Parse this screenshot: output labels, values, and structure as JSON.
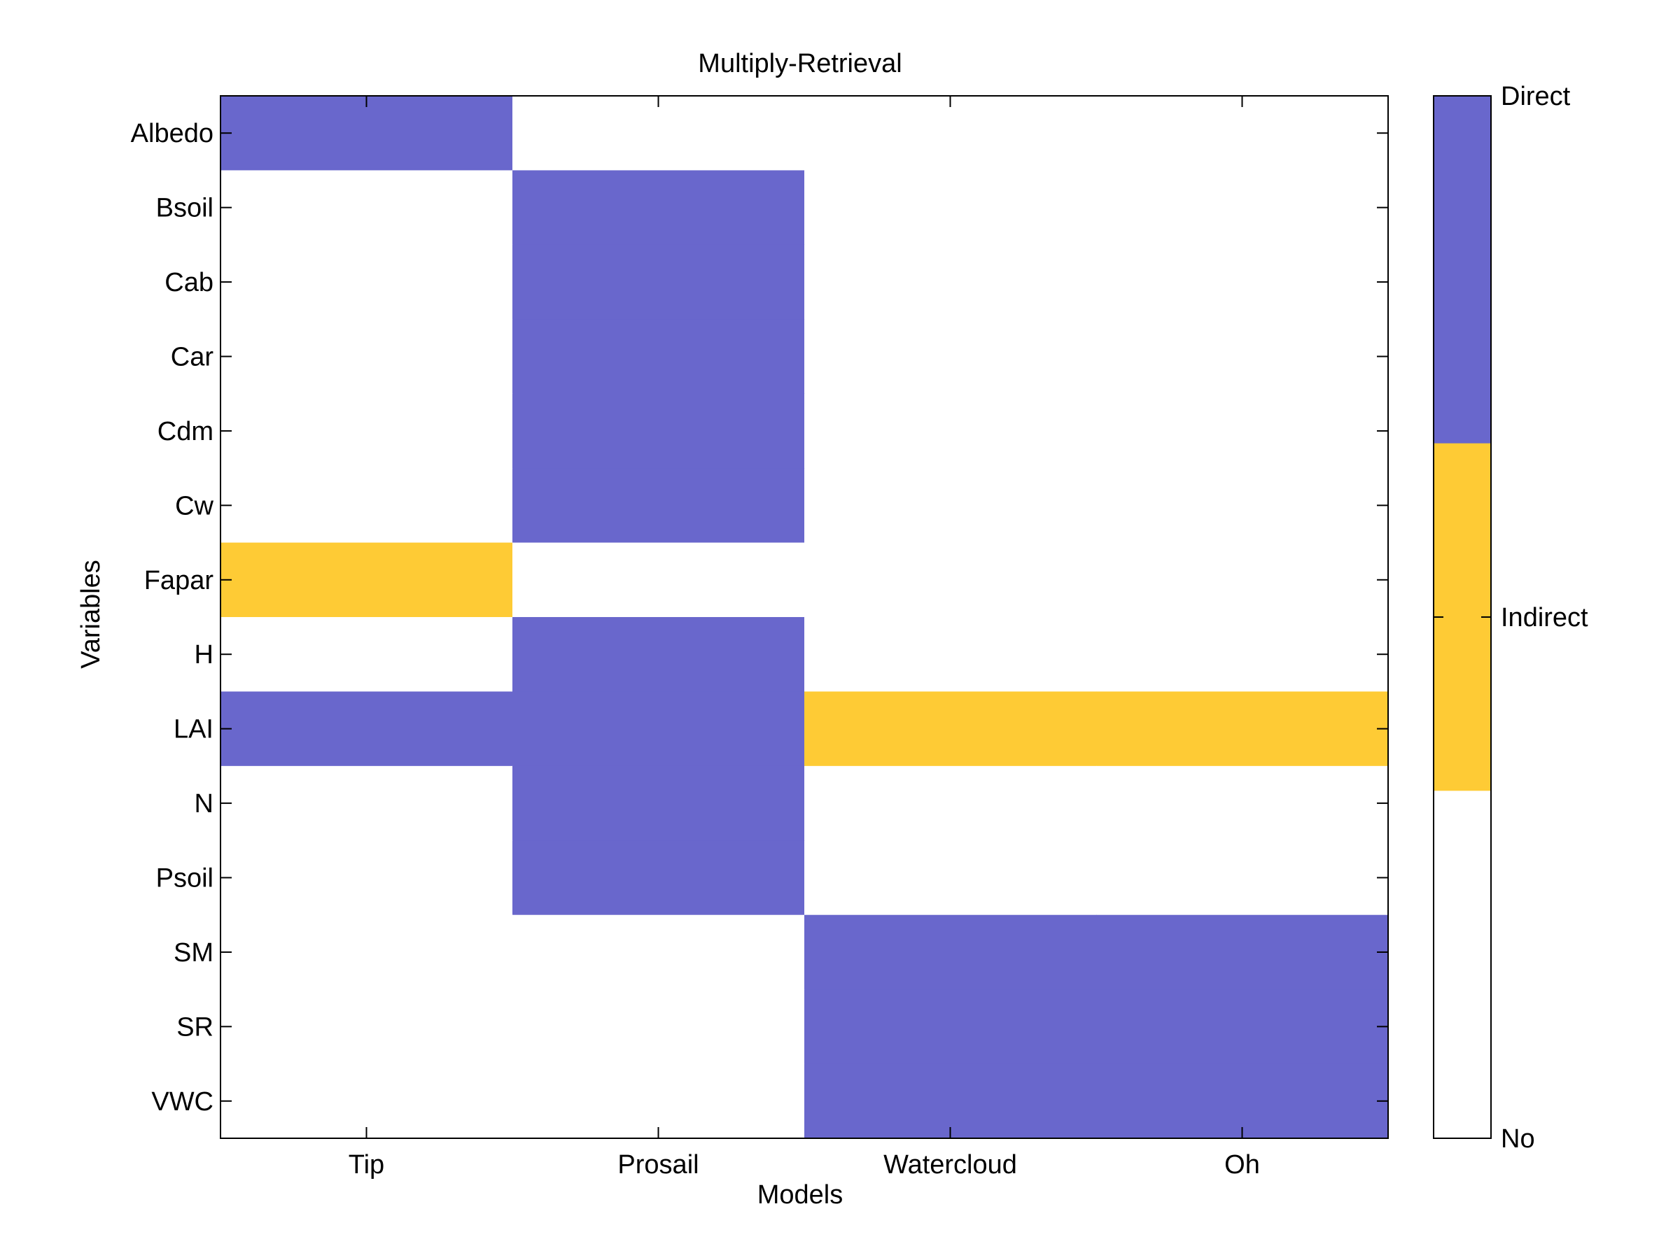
{
  "chart_data": {
    "type": "heatmap",
    "title": "Multiply-Retrieval",
    "xlabel": "Models",
    "ylabel": "Variables",
    "x_categories": [
      "Tip",
      "Prosail",
      "Watercloud",
      "Oh"
    ],
    "y_categories": [
      "Albedo",
      "Bsoil",
      "Cab",
      "Car",
      "Cdm",
      "Cw",
      "Fapar",
      "H",
      "LAI",
      "N",
      "Psoil",
      "SM",
      "SR",
      "VWC"
    ],
    "value_levels": [
      {
        "value": 0,
        "label": "No",
        "color": "#ffffff"
      },
      {
        "value": 1,
        "label": "Indirect",
        "color": "#fecb35"
      },
      {
        "value": 2,
        "label": "Direct",
        "color": "#6967cc"
      }
    ],
    "values": [
      [
        2,
        0,
        0,
        0
      ],
      [
        0,
        2,
        0,
        0
      ],
      [
        0,
        2,
        0,
        0
      ],
      [
        0,
        2,
        0,
        0
      ],
      [
        0,
        2,
        0,
        0
      ],
      [
        0,
        2,
        0,
        0
      ],
      [
        1,
        0,
        0,
        0
      ],
      [
        0,
        2,
        0,
        0
      ],
      [
        2,
        2,
        1,
        1
      ],
      [
        0,
        2,
        0,
        0
      ],
      [
        0,
        2,
        0,
        0
      ],
      [
        0,
        0,
        2,
        2
      ],
      [
        0,
        0,
        2,
        2
      ],
      [
        0,
        0,
        2,
        2
      ]
    ],
    "grid": false,
    "colorbar": {
      "position": "right",
      "range": [
        0,
        2
      ],
      "tick_labels": [
        "Direct",
        "Indirect",
        "No"
      ]
    }
  }
}
